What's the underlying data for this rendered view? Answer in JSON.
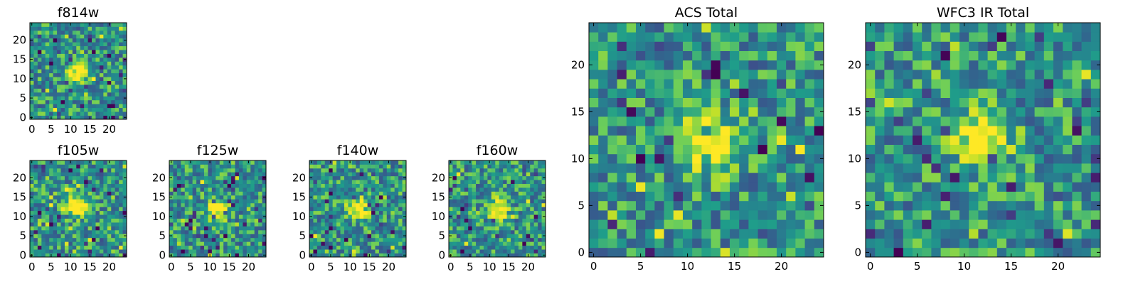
{
  "chart_data": [
    {
      "type": "heatmap",
      "title": "f814w",
      "size": 25,
      "xticks": [
        0,
        5,
        10,
        15,
        20
      ],
      "yticks": [
        0,
        5,
        10,
        15,
        20
      ],
      "xlim": [
        -0.5,
        24.5
      ],
      "ylim": [
        -0.5,
        24.5
      ],
      "source_center": [
        12,
        12
      ],
      "source_radius": 2.0,
      "grid": false,
      "colormap": "viridis"
    },
    {
      "type": "heatmap",
      "title": "f105w",
      "size": 25,
      "xticks": [
        0,
        5,
        10,
        15,
        20
      ],
      "yticks": [
        0,
        5,
        10,
        15,
        20
      ],
      "xlim": [
        -0.5,
        24.5
      ],
      "ylim": [
        -0.5,
        24.5
      ],
      "source_center": [
        12,
        13
      ],
      "source_radius": 2.0,
      "grid": false,
      "colormap": "viridis"
    },
    {
      "type": "heatmap",
      "title": "f125w",
      "size": 25,
      "xticks": [
        0,
        5,
        10,
        15,
        20
      ],
      "yticks": [
        0,
        5,
        10,
        15,
        20
      ],
      "xlim": [
        -0.5,
        24.5
      ],
      "ylim": [
        -0.5,
        24.5
      ],
      "source_center": [
        12,
        12
      ],
      "source_radius": 2.0,
      "grid": false,
      "colormap": "viridis"
    },
    {
      "type": "heatmap",
      "title": "f140w",
      "size": 25,
      "xticks": [
        0,
        5,
        10,
        15,
        20
      ],
      "yticks": [
        0,
        5,
        10,
        15,
        20
      ],
      "xlim": [
        -0.5,
        24.5
      ],
      "ylim": [
        -0.5,
        24.5
      ],
      "source_center": [
        12,
        12
      ],
      "source_radius": 2.0,
      "grid": false,
      "colormap": "viridis"
    },
    {
      "type": "heatmap",
      "title": "f160w",
      "size": 25,
      "xticks": [
        0,
        5,
        10,
        15,
        20
      ],
      "yticks": [
        0,
        5,
        10,
        15,
        20
      ],
      "xlim": [
        -0.5,
        24.5
      ],
      "ylim": [
        -0.5,
        24.5
      ],
      "source_center": [
        12,
        12
      ],
      "source_radius": 2.0,
      "grid": false,
      "colormap": "viridis"
    },
    {
      "type": "heatmap",
      "title": "ACS Total",
      "size": 25,
      "xticks": [
        0,
        5,
        10,
        15,
        20
      ],
      "yticks": [
        0,
        5,
        10,
        15,
        20
      ],
      "xlim": [
        -0.5,
        24.5
      ],
      "ylim": [
        -0.5,
        24.5
      ],
      "source_center": [
        12,
        12
      ],
      "source_radius": 2.0,
      "grid": false,
      "colormap": "viridis"
    },
    {
      "type": "heatmap",
      "title": "WFC3 IR Total",
      "size": 25,
      "xticks": [
        0,
        5,
        10,
        15,
        20
      ],
      "yticks": [
        0,
        5,
        10,
        15,
        20
      ],
      "xlim": [
        -0.5,
        24.5
      ],
      "ylim": [
        -0.5,
        24.5
      ],
      "source_center": [
        12,
        12
      ],
      "source_radius": 2.0,
      "grid": false,
      "colormap": "viridis"
    }
  ]
}
